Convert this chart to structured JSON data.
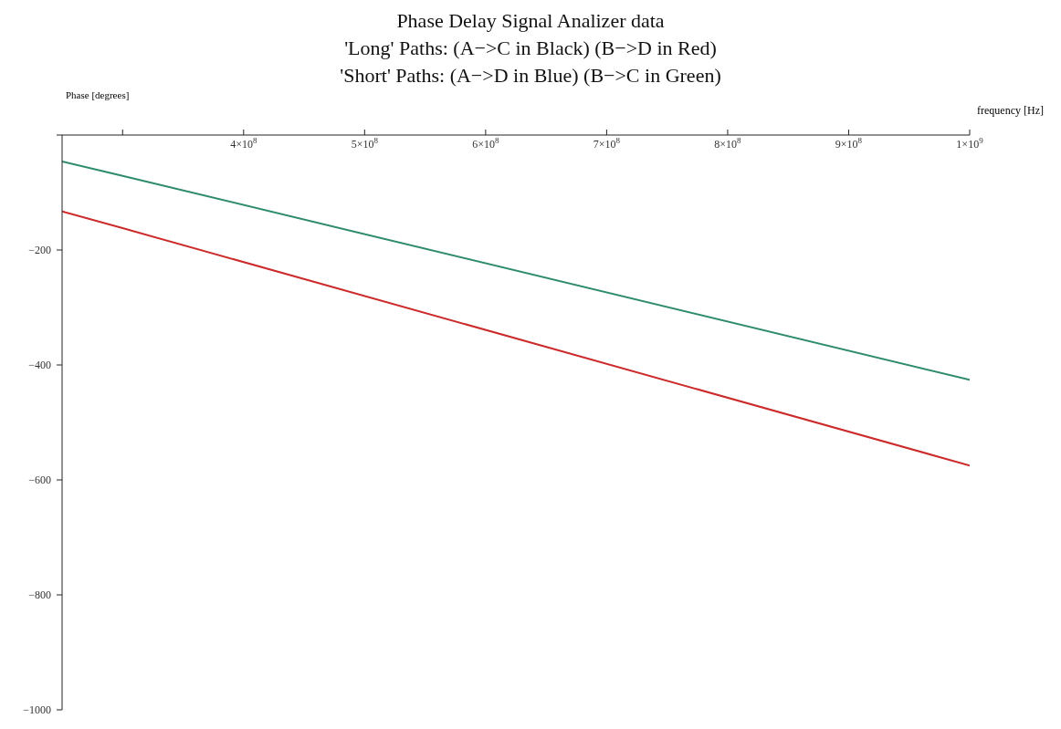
{
  "chart_data": {
    "type": "line",
    "title": "Phase Delay Signal Analizer data",
    "subtitle": "'Long' Paths: (A−>C in Black) (B−>D in Red)\n'Short' Paths: (A−>D in Blue) (B−>C in Green)",
    "xlabel": "frequency [Hz]",
    "ylabel": "Phase [degrees]",
    "x": [
      250000000,
      300000000,
      1000000000
    ],
    "series": [
      {
        "color": "#2e8b6e",
        "values": [
          -46,
          -71,
          -426
        ]
      },
      {
        "color": "#cc2b2b",
        "values": [
          -133,
          -162,
          -575
        ]
      }
    ],
    "xlim": [
      250000000,
      1000000000
    ],
    "xticks": [
      {
        "value": 300000000,
        "label": null
      },
      {
        "value": 400000000,
        "label": "4×10$^{8}$"
      },
      {
        "value": 500000000,
        "label": "5×10$^{8}$"
      },
      {
        "value": 600000000,
        "label": "6×10$^{8}$"
      },
      {
        "value": 700000000,
        "label": "7×10$^{8}$"
      },
      {
        "value": 800000000,
        "label": "8×10$^{8}$"
      },
      {
        "value": 900000000,
        "label": "9×10$^{8}$"
      },
      {
        "value": 1000000000,
        "label": "1×10$^{9}$"
      }
    ],
    "ylim": [
      -1000,
      0
    ],
    "yticks": [
      -1000,
      -800,
      -600,
      -400,
      -200,
      {
        "value": 0,
        "label": null
      }
    ],
    "grid": false,
    "legend": false,
    "marker": "none",
    "line_style": "solid"
  }
}
